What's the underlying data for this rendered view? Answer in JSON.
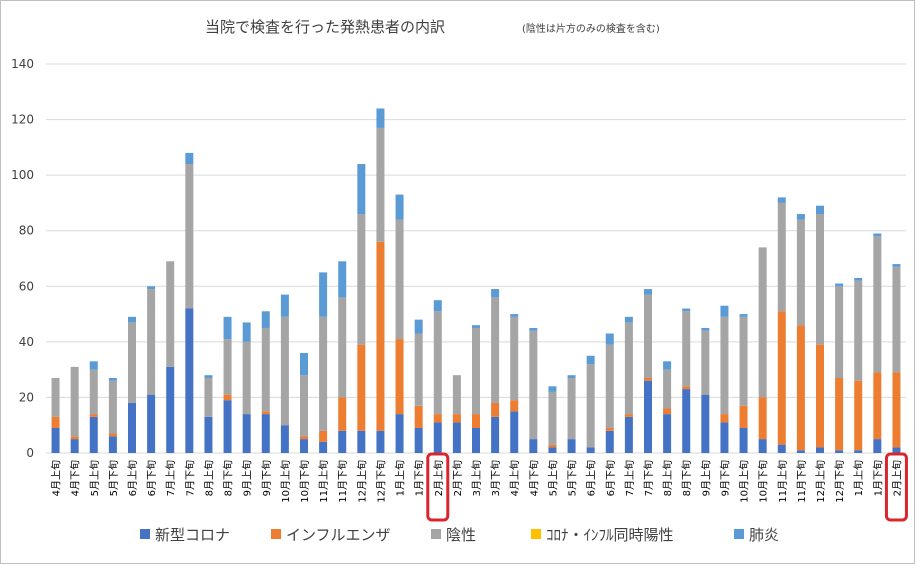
{
  "chart_data": {
    "type": "bar",
    "stacked": true,
    "title": "当院で検査を行った発熱患者の内訳",
    "subtitle": "(陰性は片方のみの検査を含む)",
    "ylim": [
      0,
      140
    ],
    "yticks": [
      0,
      20,
      40,
      60,
      80,
      100,
      120,
      140
    ],
    "grid": true,
    "legend_position": "bottom",
    "categories": [
      "4月上旬",
      "4月下旬",
      "5月上旬",
      "5月下旬",
      "6月上旬",
      "6月下旬",
      "7月上旬",
      "7月下旬",
      "8月上旬",
      "8月下旬",
      "9月上旬",
      "9月下旬",
      "10月上旬",
      "10月下旬",
      "11月上旬",
      "11月下旬",
      "12月上旬",
      "12月下旬",
      "1月上旬",
      "1月下旬",
      "2月上旬",
      "2月下旬",
      "3月上旬",
      "3月下旬",
      "4月上旬",
      "4月下旬",
      "5月上旬",
      "5月下旬",
      "6月上旬",
      "6月下旬",
      "7月上旬",
      "7月下旬",
      "8月上旬",
      "8月下旬",
      "9月上旬",
      "9月下旬",
      "10月上旬",
      "10月下旬",
      "11月上旬",
      "11月下旬",
      "12月上旬",
      "12月下旬",
      "1月上旬",
      "1月下旬",
      "2月上旬"
    ],
    "highlighted": [
      20,
      44
    ],
    "highlight_color": "#d9262e",
    "series": [
      {
        "name": "新型コロナ",
        "color": "#4472c4",
        "values": [
          9,
          5,
          13,
          6,
          18,
          21,
          31,
          52,
          13,
          19,
          14,
          14,
          10,
          5,
          4,
          8,
          8,
          8,
          14,
          9,
          11,
          11,
          9,
          13,
          15,
          5,
          2,
          5,
          2,
          8,
          13,
          26,
          14,
          23,
          21,
          11,
          9,
          5,
          3,
          1,
          2,
          1,
          1,
          5,
          2
        ]
      },
      {
        "name": "インフルエンザ",
        "color": "#ed7d31",
        "values": [
          4,
          1,
          1,
          1,
          0,
          0,
          0,
          0,
          0,
          2,
          0,
          1,
          0,
          1,
          4,
          12,
          31,
          68,
          27,
          8,
          3,
          3,
          5,
          5,
          4,
          0,
          1,
          0,
          0,
          1,
          1,
          1,
          2,
          1,
          0,
          3,
          8,
          15,
          48,
          45,
          37,
          26,
          25,
          24,
          27
        ]
      },
      {
        "name": "陰性",
        "color": "#a5a5a5",
        "values": [
          14,
          25,
          16,
          19,
          29,
          38,
          38,
          52,
          14,
          20,
          26,
          30,
          39,
          22,
          41,
          36,
          47,
          41,
          43,
          26,
          37,
          14,
          31,
          38,
          30,
          39,
          19,
          22,
          30,
          30,
          33,
          30,
          14,
          27,
          23,
          35,
          32,
          54,
          39,
          38,
          47,
          33,
          36,
          49,
          38
        ]
      },
      {
        "name": "ｺﾛﾅ・ｲﾝﾌﾙ同時陽性",
        "color": "#ffc000",
        "values": [
          0,
          0,
          0,
          0,
          0,
          0,
          0,
          0,
          0,
          0,
          0,
          0,
          0,
          0,
          0,
          0,
          0,
          0,
          0,
          0,
          0,
          0,
          0,
          0,
          0,
          0,
          0,
          0,
          0,
          0,
          0,
          0,
          0,
          0,
          0,
          0,
          0,
          0,
          0,
          0,
          0,
          0,
          0,
          0,
          0
        ]
      },
      {
        "name": "肺炎",
        "color": "#5b9bd5",
        "values": [
          0,
          0,
          3,
          1,
          2,
          1,
          0,
          4,
          1,
          8,
          7,
          6,
          8,
          8,
          16,
          13,
          18,
          7,
          9,
          5,
          4,
          0,
          1,
          3,
          1,
          1,
          2,
          1,
          3,
          4,
          2,
          2,
          3,
          1,
          1,
          4,
          1,
          0,
          2,
          2,
          3,
          1,
          1,
          1,
          1
        ]
      }
    ]
  }
}
